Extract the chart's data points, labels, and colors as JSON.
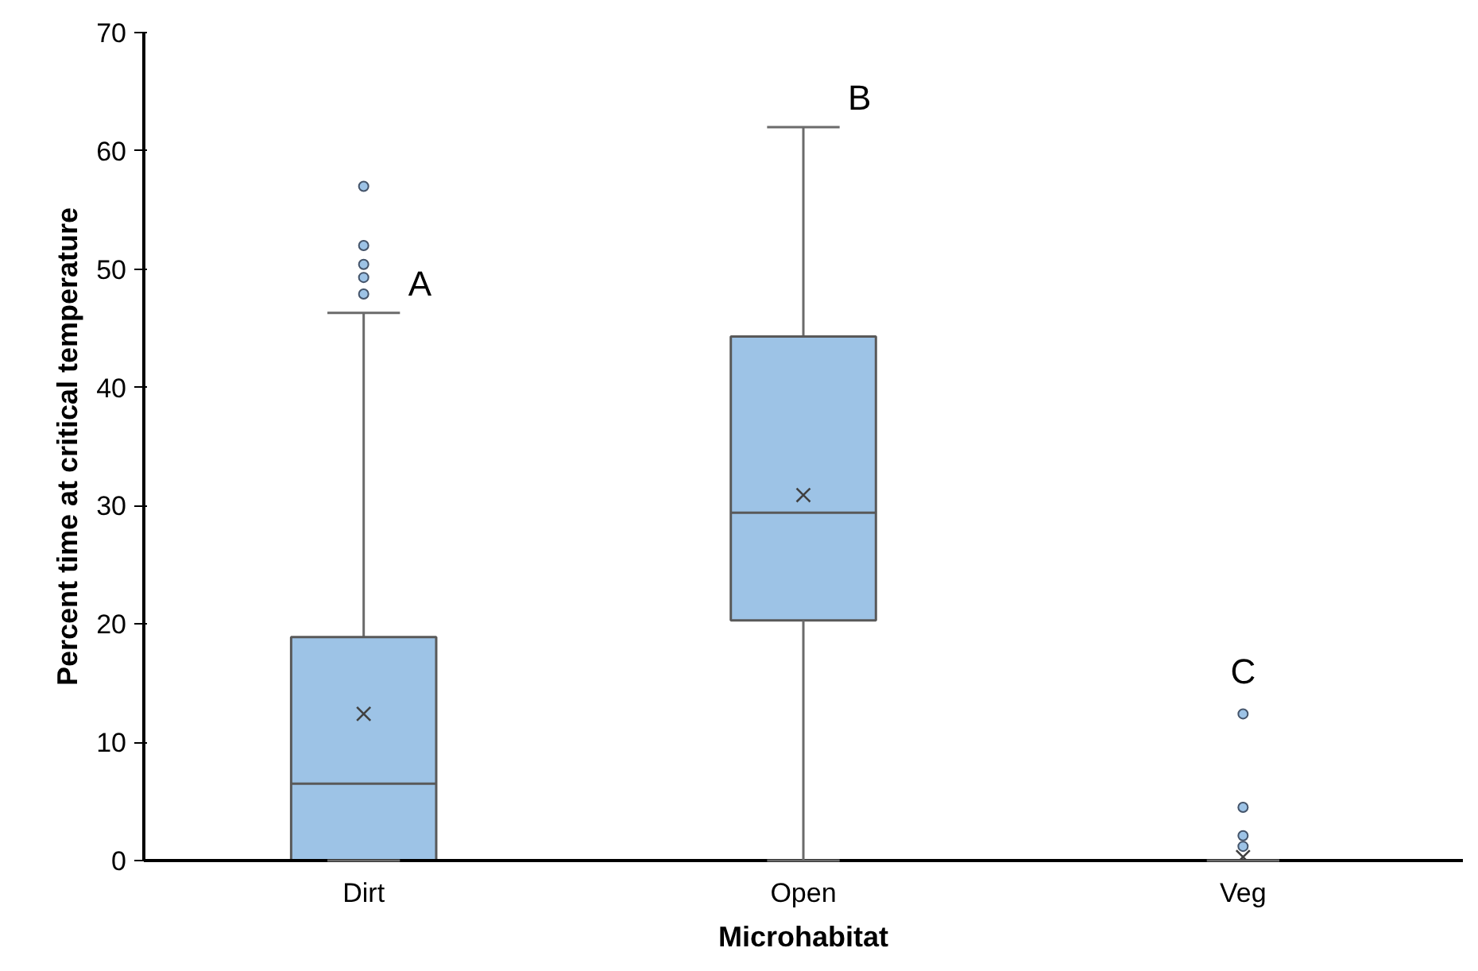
{
  "chart_data": {
    "type": "box",
    "xlabel": "Microhabitat",
    "ylabel": "Percent time at critical temperature",
    "categories": [
      "Dirt",
      "Open",
      "Veg"
    ],
    "color": "#9dc3e6",
    "boxes": [
      {
        "low": 0,
        "q1": 0,
        "median": 6.5,
        "q3": 18.9,
        "high": 46.3,
        "mean": 12.4,
        "outliers": [
          57,
          52,
          50.4,
          49.3,
          47.9
        ]
      },
      {
        "low": 0,
        "q1": 20.3,
        "median": 29.4,
        "q3": 44.3,
        "high": 62,
        "mean": 30.9
      },
      {
        "low": 0,
        "q1": 0,
        "median": 0,
        "q3": 0,
        "high": 0,
        "mean": 0.3,
        "outliers": [
          12.4,
          4.5,
          2.1,
          1.2
        ]
      }
    ],
    "ylim": [
      0,
      70
    ],
    "yticks": [
      0,
      10,
      20,
      30,
      40,
      50,
      60,
      70
    ],
    "grid": false,
    "annotations": [
      "A",
      "B",
      "C"
    ]
  }
}
